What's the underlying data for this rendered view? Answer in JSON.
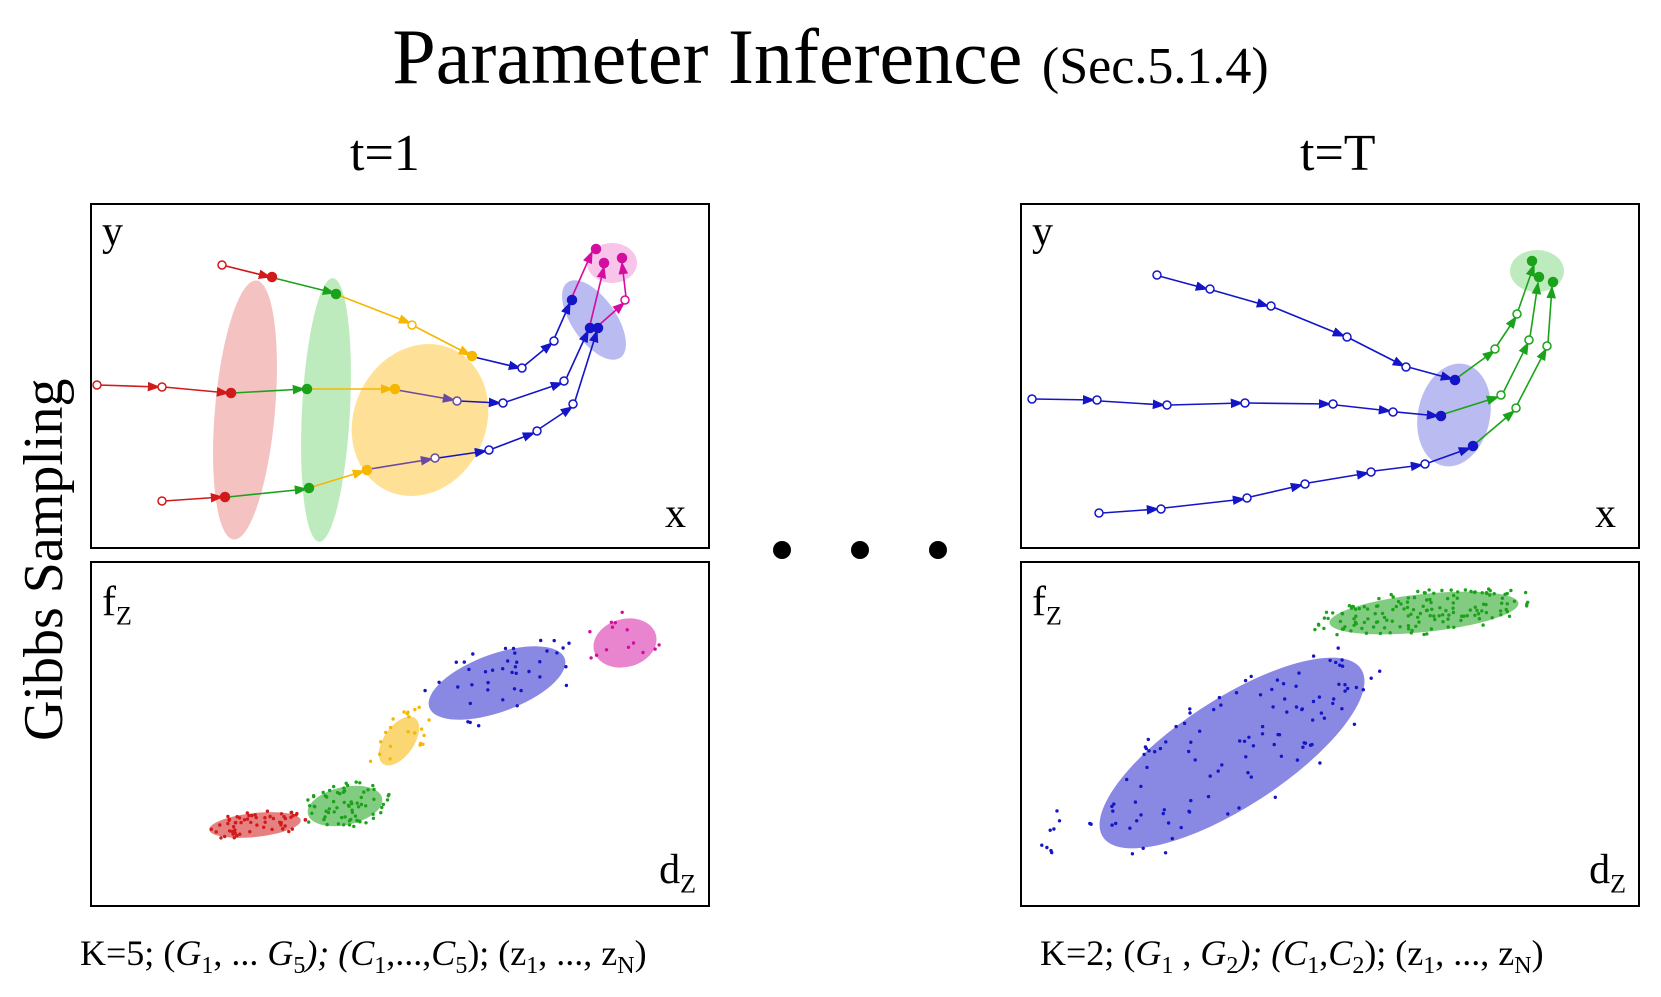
{
  "title": {
    "main": "Parameter Inference",
    "section": "(Sec.5.1.4)"
  },
  "side_label": "Gibbs Sampling",
  "columns": [
    {
      "heading": "t=1"
    },
    {
      "heading": "t=T"
    }
  ],
  "axes": {
    "top": {
      "y": "y",
      "x": "x"
    },
    "bottom": {
      "f": "f",
      "f_sub": "Z",
      "d": "d",
      "d_sub": "Z"
    }
  },
  "captions": {
    "left": {
      "k": "K=5;",
      "g1": "G",
      "g1s": "1",
      "gmid": ", ... ",
      "g2": "G",
      "g2s": "5",
      "c1": "C",
      "c1s": "1",
      "cmid": ",...,",
      "c2": "C",
      "c2s": "5",
      "z1": "z",
      "z1s": "1",
      "zmid": ", ..., ",
      "z2": "z",
      "z2s": "N"
    },
    "right": {
      "k": "K=2;",
      "g1": "G",
      "g1s": "1",
      "gmid": " , ",
      "g2": "G",
      "g2s": "2",
      "c1": "C",
      "c1s": "1",
      "cmid": ",",
      "c2": "C",
      "c2s": "2",
      "z1": "z",
      "z1s": "1",
      "zmid": ", ..., ",
      "z2": "z",
      "z2s": "N"
    }
  },
  "colors": {
    "red": "#d11a1a",
    "green": "#1aa31a",
    "yellow": "#f5b700",
    "blue": "#1414c8",
    "magenta": "#d40ca0",
    "red_fill": "#ef9a9a",
    "green_fill": "#a3e3a3",
    "yellow_fill": "#ffd36b",
    "blue_fill": "#8c8ee8",
    "magenta_fill": "#f28ad6"
  }
}
